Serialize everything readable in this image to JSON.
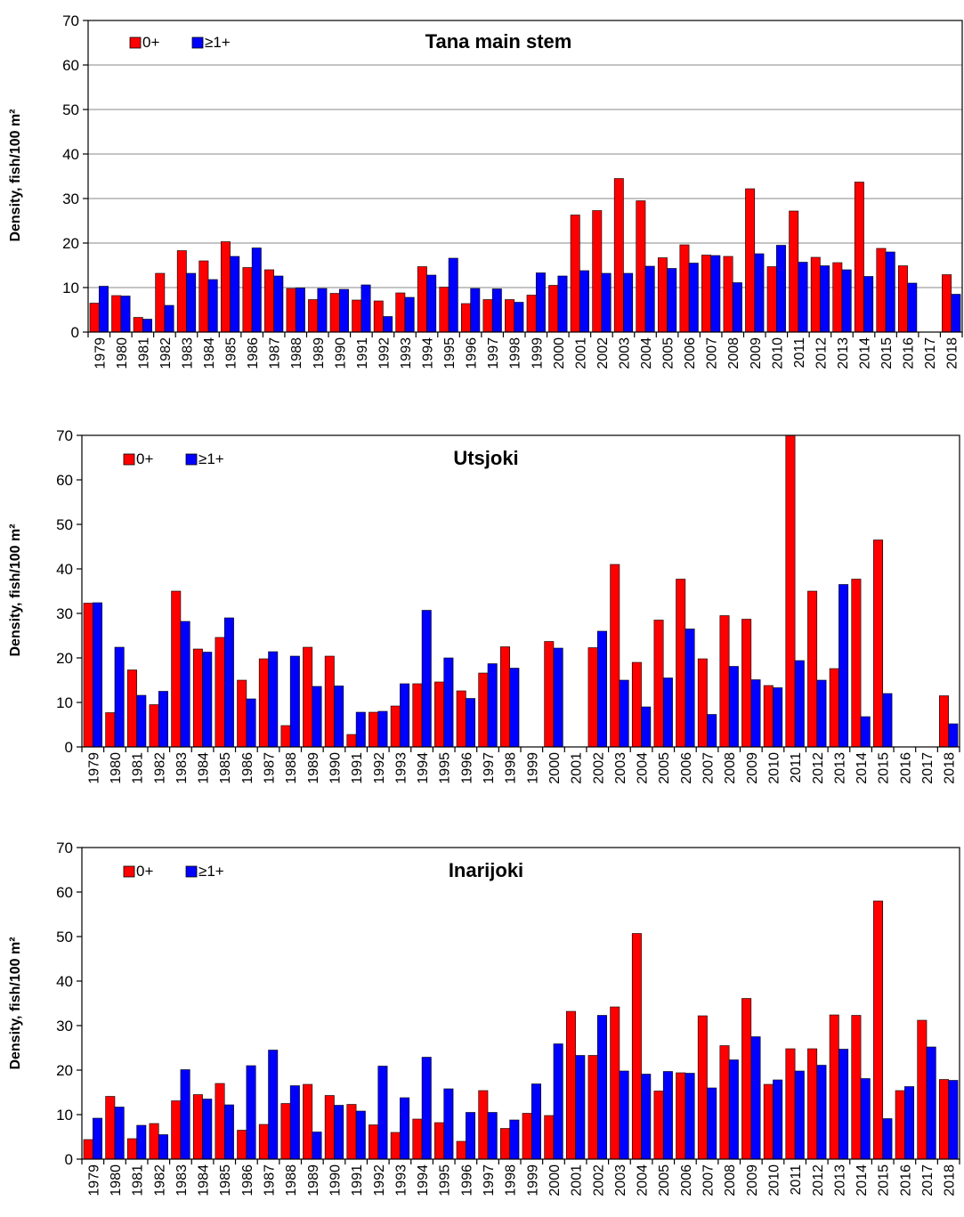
{
  "chart_data": [
    {
      "type": "bar",
      "title": "Tana main stem",
      "xlabel": "",
      "ylabel": "Density, fish/100 m²",
      "ylim": [
        0,
        70
      ],
      "yticks": [
        0,
        10,
        20,
        30,
        40,
        50,
        60,
        70
      ],
      "grid": true,
      "legend": "top-left",
      "categories": [
        "1979",
        "1980",
        "1981",
        "1982",
        "1983",
        "1984",
        "1985",
        "1986",
        "1987",
        "1988",
        "1989",
        "1990",
        "1991",
        "1992",
        "1993",
        "1994",
        "1995",
        "1996",
        "1997",
        "1998",
        "1999",
        "2000",
        "2001",
        "2002",
        "2003",
        "2004",
        "2005",
        "2006",
        "2007",
        "2008",
        "2009",
        "2010",
        "2011",
        "2012",
        "2013",
        "2014",
        "2015",
        "2016",
        "2017",
        "2018"
      ],
      "series": [
        {
          "name": "0+",
          "color": "#ff0000",
          "values": [
            6.5,
            8.2,
            3.3,
            13.2,
            18.3,
            16.0,
            20.3,
            14.5,
            14.0,
            9.8,
            7.3,
            8.7,
            7.2,
            7.0,
            8.8,
            14.7,
            10.1,
            6.4,
            7.3,
            7.3,
            8.3,
            10.5,
            26.3,
            27.3,
            34.5,
            29.5,
            16.7,
            19.6,
            17.3,
            17.0,
            32.2,
            14.7,
            27.2,
            16.8,
            15.6,
            33.7,
            18.8,
            14.9,
            null,
            12.9
          ]
        },
        {
          "name": "≥1+",
          "color": "#0000ff",
          "values": [
            10.3,
            8.1,
            2.9,
            6.0,
            13.2,
            11.8,
            17.0,
            18.9,
            12.6,
            9.9,
            9.8,
            9.6,
            10.6,
            3.5,
            7.8,
            12.8,
            16.6,
            9.8,
            9.7,
            6.7,
            13.3,
            12.6,
            13.8,
            13.2,
            13.2,
            14.8,
            14.3,
            15.5,
            17.2,
            11.1,
            17.6,
            19.5,
            15.7,
            14.9,
            14.0,
            12.5,
            18.0,
            11.0,
            null,
            8.5
          ]
        }
      ]
    },
    {
      "type": "bar",
      "title": "Utsjoki",
      "xlabel": "",
      "ylabel": "Density, fish/100 m²",
      "ylim": [
        0,
        70
      ],
      "yticks": [
        0,
        10,
        20,
        30,
        40,
        50,
        60,
        70
      ],
      "grid": false,
      "legend": "top-left",
      "categories": [
        "1979",
        "1980",
        "1981",
        "1982",
        "1983",
        "1984",
        "1985",
        "1986",
        "1987",
        "1988",
        "1989",
        "1990",
        "1991",
        "1992",
        "1993",
        "1994",
        "1995",
        "1996",
        "1997",
        "1998",
        "1999",
        "2000",
        "2001",
        "2002",
        "2003",
        "2004",
        "2005",
        "2006",
        "2007",
        "2008",
        "2009",
        "2010",
        "2011",
        "2012",
        "2013",
        "2014",
        "2015",
        "2016",
        "2017",
        "2018"
      ],
      "series": [
        {
          "name": "0+",
          "color": "#ff0000",
          "values": [
            32.3,
            7.7,
            17.3,
            9.5,
            35.0,
            22.0,
            24.6,
            15.0,
            19.8,
            4.8,
            22.4,
            20.4,
            2.8,
            7.8,
            9.2,
            14.2,
            14.6,
            12.6,
            16.6,
            22.5,
            null,
            23.7,
            null,
            22.3,
            41.0,
            19.0,
            28.5,
            37.7,
            19.8,
            29.5,
            28.7,
            13.8,
            70.0,
            35.0,
            17.6,
            37.7,
            46.5,
            null,
            null,
            11.5
          ]
        },
        {
          "name": "≥1+",
          "color": "#0000ff",
          "values": [
            32.4,
            22.4,
            11.6,
            12.5,
            28.2,
            21.3,
            29.0,
            10.8,
            21.4,
            20.4,
            13.6,
            13.7,
            7.8,
            8.0,
            14.2,
            30.7,
            20.0,
            10.9,
            18.7,
            17.7,
            null,
            22.2,
            null,
            26.0,
            15.0,
            9.0,
            15.5,
            26.5,
            7.3,
            18.1,
            15.1,
            13.3,
            19.4,
            15.0,
            36.5,
            6.8,
            12.0,
            null,
            null,
            5.2
          ]
        }
      ]
    },
    {
      "type": "bar",
      "title": "Inarijoki",
      "xlabel": "",
      "ylabel": "Density, fish/100 m²",
      "ylim": [
        0,
        70
      ],
      "yticks": [
        0,
        10,
        20,
        30,
        40,
        50,
        60,
        70
      ],
      "grid": false,
      "legend": "top-left",
      "categories": [
        "1979",
        "1980",
        "1981",
        "1982",
        "1983",
        "1984",
        "1985",
        "1986",
        "1987",
        "1988",
        "1989",
        "1990",
        "1991",
        "1992",
        "1993",
        "1994",
        "1995",
        "1996",
        "1997",
        "1998",
        "1999",
        "2000",
        "2001",
        "2002",
        "2003",
        "2004",
        "2005",
        "2006",
        "2007",
        "2008",
        "2009",
        "2010",
        "2011",
        "2012",
        "2013",
        "2014",
        "2015",
        "2016",
        "2017",
        "2018"
      ],
      "series": [
        {
          "name": "0+",
          "color": "#ff0000",
          "values": [
            4.4,
            14.1,
            4.6,
            8.0,
            13.1,
            14.5,
            17.0,
            6.5,
            7.8,
            12.5,
            16.8,
            14.3,
            12.3,
            7.7,
            6.0,
            9.0,
            8.2,
            4.0,
            15.4,
            6.9,
            10.3,
            9.8,
            33.2,
            23.3,
            34.2,
            50.7,
            15.3,
            19.4,
            32.2,
            25.5,
            36.1,
            16.8,
            24.8,
            24.8,
            32.4,
            32.3,
            58.0,
            15.4,
            31.2,
            17.9
          ]
        },
        {
          "name": "≥1+",
          "color": "#0000ff",
          "values": [
            9.2,
            11.7,
            7.6,
            5.5,
            20.1,
            13.5,
            12.2,
            21.0,
            24.5,
            16.5,
            6.1,
            12.1,
            10.8,
            20.9,
            13.8,
            22.9,
            15.8,
            10.5,
            10.5,
            8.8,
            16.9,
            25.9,
            23.3,
            32.3,
            19.8,
            19.1,
            19.7,
            19.3,
            16.0,
            22.3,
            27.5,
            17.8,
            19.8,
            21.1,
            24.7,
            18.1,
            9.1,
            16.3,
            25.2,
            17.7
          ]
        }
      ]
    }
  ]
}
